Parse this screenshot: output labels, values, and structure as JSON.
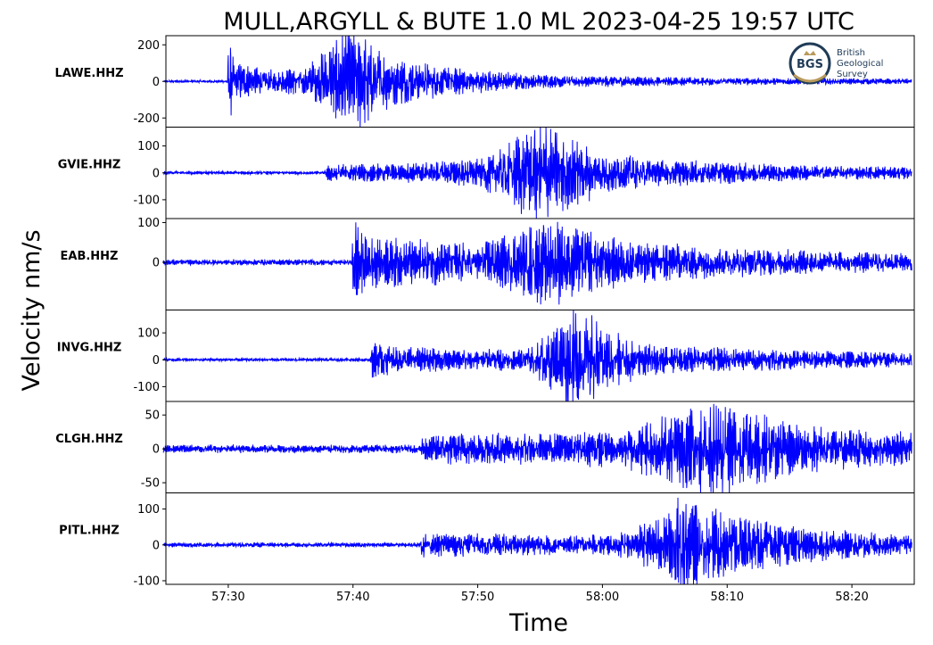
{
  "chart_data": {
    "type": "line",
    "title": "MULL,ARGYLL & BUTE 1.0 ML   2023-04-25 19:57 UTC",
    "xlabel": "Time",
    "ylabel": "Velocity nm/s",
    "x_range_seconds": [
      25,
      85
    ],
    "x_ticks": [
      {
        "value": 30,
        "label": "57:30"
      },
      {
        "value": 40,
        "label": "57:40"
      },
      {
        "value": 50,
        "label": "57:50"
      },
      {
        "value": 60,
        "label": "58:00"
      },
      {
        "value": 70,
        "label": "58:10"
      },
      {
        "value": 80,
        "label": "58:20"
      }
    ],
    "line_color": "#0000ff",
    "series": [
      {
        "name": "LAWE.HHZ",
        "ylim": [
          -250,
          250
        ],
        "yticks": [
          {
            "v": 200,
            "l": "200"
          },
          {
            "v": 0,
            "l": "0"
          },
          {
            "v": -200,
            "l": "-200"
          }
        ],
        "noise": 6,
        "onset": 30.0,
        "envelope": [
          [
            25,
            6
          ],
          [
            29.9,
            6
          ],
          [
            30.0,
            200
          ],
          [
            30.5,
            90
          ],
          [
            33,
            55
          ],
          [
            36,
            60
          ],
          [
            38,
            150
          ],
          [
            39.5,
            230
          ],
          [
            41,
            200
          ],
          [
            43,
            110
          ],
          [
            48,
            60
          ],
          [
            55,
            30
          ],
          [
            65,
            20
          ],
          [
            75,
            15
          ],
          [
            85,
            12
          ]
        ]
      },
      {
        "name": "GVIE.HHZ",
        "ylim": [
          -170,
          170
        ],
        "yticks": [
          {
            "v": 100,
            "l": "100"
          },
          {
            "v": 0,
            "l": "0"
          },
          {
            "v": -100,
            "l": "-100"
          }
        ],
        "noise": 5,
        "onset": 37.8,
        "envelope": [
          [
            25,
            5
          ],
          [
            37.7,
            5
          ],
          [
            37.8,
            25
          ],
          [
            45,
            30
          ],
          [
            50,
            45
          ],
          [
            52,
            80
          ],
          [
            54,
            140
          ],
          [
            55.5,
            165
          ],
          [
            57,
            120
          ],
          [
            60,
            60
          ],
          [
            65,
            40
          ],
          [
            75,
            25
          ],
          [
            85,
            18
          ]
        ]
      },
      {
        "name": "EAB.HHZ",
        "ylim": [
          -120,
          110
        ],
        "yticks": [
          {
            "v": 100,
            "l": "100"
          },
          {
            "v": 0,
            "l": "0"
          }
        ],
        "noise": 6,
        "onset": 40.0,
        "envelope": [
          [
            25,
            6
          ],
          [
            39.9,
            6
          ],
          [
            40.0,
            95
          ],
          [
            41,
            60
          ],
          [
            44,
            50
          ],
          [
            50,
            40
          ],
          [
            53,
            60
          ],
          [
            56,
            95
          ],
          [
            58,
            70
          ],
          [
            62,
            45
          ],
          [
            70,
            30
          ],
          [
            85,
            18
          ]
        ]
      },
      {
        "name": "INVG.HHZ",
        "ylim": [
          -155,
          185
        ],
        "yticks": [
          {
            "v": 100,
            "l": "100"
          },
          {
            "v": 0,
            "l": "0"
          },
          {
            "v": -100,
            "l": "-100"
          }
        ],
        "noise": 5,
        "onset": 41.5,
        "envelope": [
          [
            25,
            5
          ],
          [
            41.4,
            5
          ],
          [
            41.5,
            55
          ],
          [
            44,
            40
          ],
          [
            50,
            30
          ],
          [
            54,
            35
          ],
          [
            56,
            90
          ],
          [
            58,
            170
          ],
          [
            60,
            110
          ],
          [
            63,
            50
          ],
          [
            70,
            35
          ],
          [
            85,
            22
          ]
        ]
      },
      {
        "name": "CLGH.HHZ",
        "ylim": [
          -65,
          70
        ],
        "yticks": [
          {
            "v": 50,
            "l": "50"
          },
          {
            "v": 0,
            "l": "0"
          },
          {
            "v": -50,
            "l": "-50"
          }
        ],
        "noise": 5,
        "onset": 45.5,
        "envelope": [
          [
            25,
            5
          ],
          [
            45.4,
            5
          ],
          [
            45.5,
            15
          ],
          [
            48,
            20
          ],
          [
            55,
            18
          ],
          [
            62,
            25
          ],
          [
            66,
            45
          ],
          [
            68,
            60
          ],
          [
            70,
            55
          ],
          [
            73,
            40
          ],
          [
            78,
            25
          ],
          [
            85,
            20
          ]
        ]
      },
      {
        "name": "PITL.HHZ",
        "ylim": [
          -110,
          145
        ],
        "yticks": [
          {
            "v": 100,
            "l": "100"
          },
          {
            "v": 0,
            "l": "0"
          },
          {
            "v": -100,
            "l": "-100"
          }
        ],
        "noise": 5,
        "onset": 45.5,
        "envelope": [
          [
            25,
            5
          ],
          [
            45.4,
            5
          ],
          [
            45.5,
            30
          ],
          [
            50,
            25
          ],
          [
            58,
            22
          ],
          [
            62,
            30
          ],
          [
            65,
            70
          ],
          [
            66.5,
            120
          ],
          [
            68,
            90
          ],
          [
            72,
            60
          ],
          [
            76,
            40
          ],
          [
            85,
            20
          ]
        ]
      }
    ]
  },
  "logo": {
    "abbr": "BGS",
    "line1": "British",
    "line2": "Geological",
    "line3": "Survey",
    "ring_color": "#1f3b57",
    "accent_color": "#b99a5c"
  }
}
